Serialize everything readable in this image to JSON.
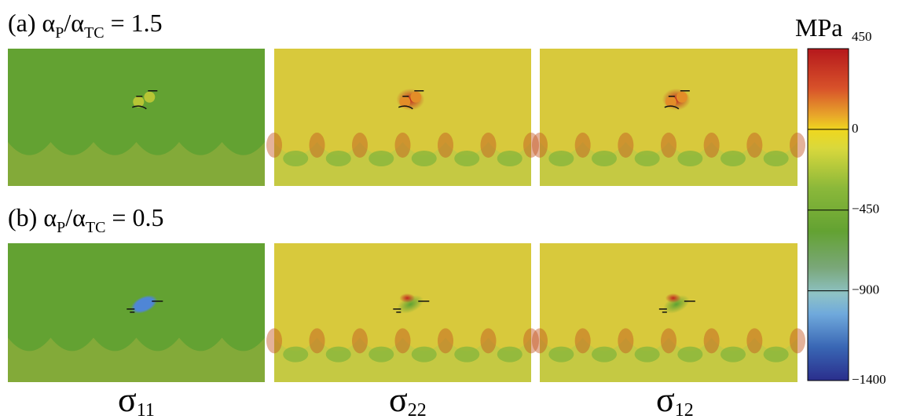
{
  "rows": [
    {
      "prefix": "(a)  α",
      "sub1": "P",
      "mid": "/α",
      "sub2": "TC",
      "rhs": " = 1.5"
    },
    {
      "prefix": "(b)  α",
      "sub1": "P",
      "mid": "/α",
      "sub2": "TC",
      "rhs": " = 0.5"
    }
  ],
  "columns": [
    {
      "symbol": "σ",
      "sub": "11"
    },
    {
      "symbol": "σ",
      "sub": "22"
    },
    {
      "symbol": "σ",
      "sub": "12"
    }
  ],
  "colorbar": {
    "unit": "MPa",
    "range": [
      -1400,
      450
    ],
    "ticks": [
      450,
      0,
      {
        "value": -450,
        "label": "−450"
      },
      {
        "value": -900,
        "label": "−900"
      },
      {
        "value": -1400,
        "label": "−1400"
      }
    ]
  }
}
